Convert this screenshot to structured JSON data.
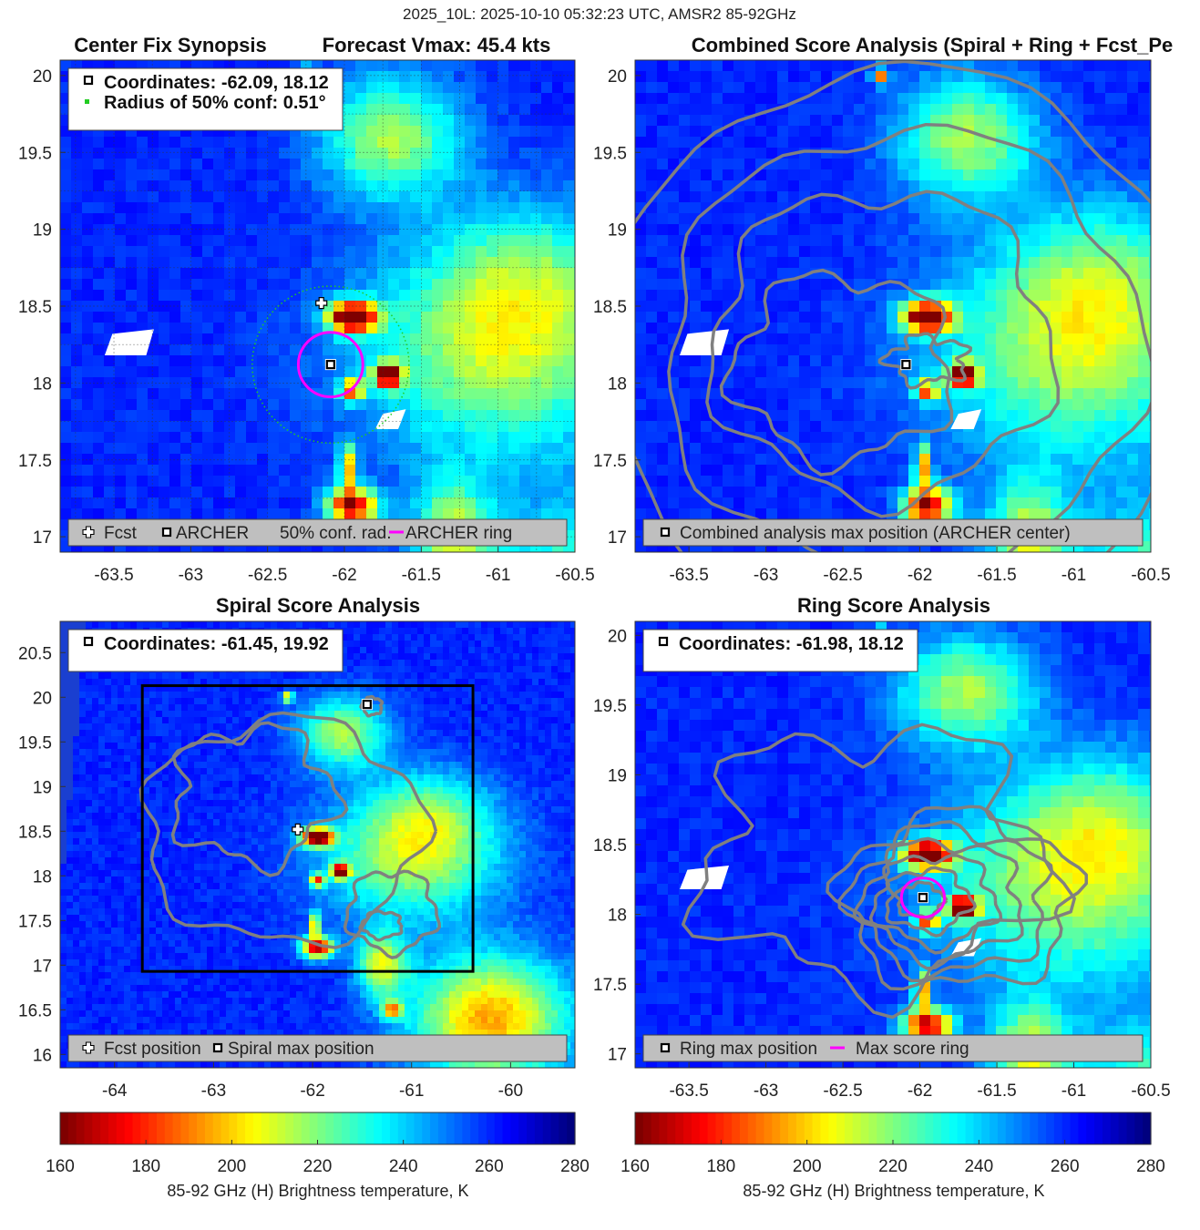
{
  "figure": {
    "suptitle": "2025_10L: 2025-10-10 05:32:23 UTC, AMSR2 85-92GHz"
  },
  "colors": {
    "fcst_marker": "#ffffff",
    "archer_marker": "#000000",
    "conf_circle": "#22cc22",
    "ring": "#ff00ff",
    "contour": "#808080",
    "legend_bg": "#bfbfbf",
    "box": "#000000"
  },
  "colormap": {
    "name": "jet_reversed",
    "stops": [
      "#7f0000",
      "#ff0000",
      "#ff7f00",
      "#ffff00",
      "#7fff7f",
      "#00ffff",
      "#007fff",
      "#0000ff",
      "#00007f"
    ]
  },
  "chart_data": [
    {
      "id": "center-fix",
      "type": "heatmap",
      "title": "Center Fix Synopsis",
      "title_right": "Forecast Vmax: 45.4 kts",
      "xlim": [
        -63.85,
        -60.5
      ],
      "ylim": [
        16.9,
        20.1
      ],
      "xticks": [
        -63.5,
        -63,
        -62.5,
        -62,
        -61.5,
        -61,
        -60.5
      ],
      "xtick_labels": [
        "-63.5",
        "-63",
        "-62.5",
        "-62",
        "-61.5",
        "-61",
        "-60.5"
      ],
      "yticks": [
        17,
        17.5,
        18,
        18.5,
        19,
        19.5,
        20
      ],
      "ytick_labels": [
        "17",
        "17.5",
        "18",
        "18.5",
        "19",
        "19.5",
        "20"
      ],
      "grid": true,
      "info_lines": [
        "Coordinates: -62.09, 18.12",
        "Radius of 50% conf: 0.51°"
      ],
      "fcst_position": [
        -62.15,
        18.52
      ],
      "archer_center": [
        -62.09,
        18.12
      ],
      "ring_radius_deg": 0.21,
      "conf_radius_deg": 0.51,
      "legend": [
        "Fcst",
        "ARCHER",
        "50% conf. rad.",
        "ARCHER ring"
      ]
    },
    {
      "id": "combined",
      "type": "heatmap",
      "title": "Combined Score Analysis (Spiral + Ring + Fcst_Pe",
      "xlim": [
        -63.85,
        -60.5
      ],
      "ylim": [
        16.9,
        20.1
      ],
      "xticks": [
        -63.5,
        -63,
        -62.5,
        -62,
        -61.5,
        -61,
        -60.5
      ],
      "xtick_labels": [
        "-63.5",
        "-63",
        "-62.5",
        "-62",
        "-61.5",
        "-61",
        "-60.5"
      ],
      "yticks": [
        17,
        17.5,
        18,
        18.5,
        19,
        19.5,
        20
      ],
      "ytick_labels": [
        "17",
        "17.5",
        "18",
        "18.5",
        "19",
        "19.5",
        "20"
      ],
      "grid": false,
      "max_position": [
        -62.09,
        18.12
      ],
      "legend": [
        "Combined analysis max position (ARCHER center)"
      ]
    },
    {
      "id": "spiral",
      "type": "heatmap",
      "title": "Spiral Score Analysis",
      "xlim": [
        -64.55,
        -59.35
      ],
      "ylim": [
        15.85,
        20.85
      ],
      "xticks": [
        -64,
        -63,
        -62,
        -61,
        -60
      ],
      "xtick_labels": [
        "-64",
        "-63",
        "-62",
        "-61",
        "-60"
      ],
      "yticks": [
        16,
        16.5,
        17,
        17.5,
        18,
        18.5,
        19,
        19.5,
        20,
        20.5
      ],
      "ytick_labels": [
        "16",
        "16.5",
        "17",
        "17.5",
        "18",
        "18.5",
        "19",
        "19.5",
        "20",
        "20.5"
      ],
      "grid": false,
      "info_lines": [
        "Coordinates: -61.45, 19.92"
      ],
      "fcst_position": [
        -62.15,
        18.52
      ],
      "max_position": [
        -61.45,
        19.92
      ],
      "search_box": {
        "x": [
          -63.72,
          -60.38
        ],
        "y": [
          16.93,
          20.13
        ]
      },
      "legend": [
        "Fcst position",
        "Spiral max position"
      ]
    },
    {
      "id": "ring",
      "type": "heatmap",
      "title": "Ring Score Analysis",
      "xlim": [
        -63.85,
        -60.5
      ],
      "ylim": [
        16.9,
        20.1
      ],
      "xticks": [
        -63.5,
        -63,
        -62.5,
        -62,
        -61.5,
        -61,
        -60.5
      ],
      "xtick_labels": [
        "-63.5",
        "-63",
        "-62.5",
        "-62",
        "-61.5",
        "-61",
        "-60.5"
      ],
      "yticks": [
        17,
        17.5,
        18,
        18.5,
        19,
        19.5,
        20
      ],
      "ytick_labels": [
        "17",
        "17.5",
        "18",
        "18.5",
        "19",
        "19.5",
        "20"
      ],
      "grid": false,
      "info_lines": [
        "Coordinates: -61.98, 18.12"
      ],
      "max_position": [
        -61.98,
        18.12
      ],
      "ring_radius_deg": 0.14,
      "legend": [
        "Ring max position",
        "Max score ring"
      ]
    }
  ],
  "colorbars": [
    {
      "id": "cbar-left",
      "range": [
        160,
        280
      ],
      "ticks": [
        "160",
        "180",
        "200",
        "220",
        "240",
        "260",
        "280"
      ],
      "label": "85-92 GHz (H) Brightness temperature, K"
    },
    {
      "id": "cbar-right",
      "range": [
        160,
        280
      ],
      "ticks": [
        "160",
        "180",
        "200",
        "220",
        "240",
        "260",
        "280"
      ],
      "label": "85-92 GHz (H) Brightness temperature, K"
    }
  ]
}
